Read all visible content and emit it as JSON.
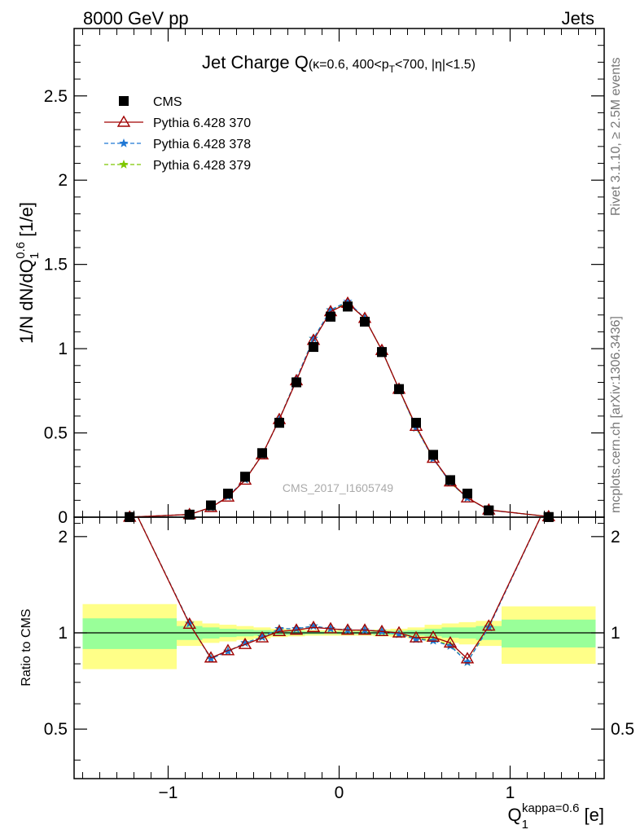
{
  "header": {
    "left": "8000 GeV pp",
    "right": "Jets"
  },
  "side_labels": {
    "rivet": "Rivet 3.1.10, ≥ 2.5M events",
    "mcplots": "mcplots.cern.ch [arXiv:1306.3436]"
  },
  "chart_data": [
    {
      "type": "line",
      "panel": "main",
      "title_main": "Jet Charge Q",
      "title_paren_open": "(κ=0.6, 400<p",
      "title_sub": "T",
      "title_paren_close": "<700, |η|<1.5)",
      "ylabel_a": "1/N dN/dQ",
      "ylabel_sub": "1",
      "ylabel_sup": "0.6",
      "ylabel_b": " [1/e]",
      "watermark": "CMS_2017_I1605749",
      "xlim": [
        -1.55,
        1.55
      ],
      "ylim": [
        0,
        2.9
      ],
      "yticks": [
        {
          "v": 0,
          "label": "0"
        },
        {
          "v": 0.5,
          "label": "0.5"
        },
        {
          "v": 1,
          "label": "1"
        },
        {
          "v": 1.5,
          "label": "1.5"
        },
        {
          "v": 2,
          "label": "2"
        },
        {
          "v": 2.5,
          "label": "2.5"
        }
      ],
      "x": [
        -1.225,
        -0.875,
        -0.75,
        -0.65,
        -0.55,
        -0.45,
        -0.35,
        -0.25,
        -0.15,
        -0.05,
        0.05,
        0.15,
        0.25,
        0.35,
        0.45,
        0.55,
        0.65,
        0.75,
        0.875,
        1.225
      ],
      "series": [
        {
          "name": "CMS",
          "color": "#000000",
          "marker": "square",
          "values": [
            0.0008,
            0.015,
            0.07,
            0.14,
            0.24,
            0.38,
            0.56,
            0.8,
            1.01,
            1.19,
            1.25,
            1.16,
            0.98,
            0.76,
            0.56,
            0.37,
            0.22,
            0.14,
            0.04,
            0.0008
          ]
        },
        {
          "name": "Pythia 6.428 370",
          "color": "#a00000",
          "marker": "triangle-open",
          "dash": "",
          "values": [
            0.0005,
            0.016,
            0.058,
            0.12,
            0.22,
            0.37,
            0.58,
            0.81,
            1.05,
            1.22,
            1.27,
            1.18,
            0.99,
            0.76,
            0.54,
            0.35,
            0.21,
            0.115,
            0.043,
            0.0035
          ]
        },
        {
          "name": "Pythia 6.428 378",
          "color": "#1f77d4",
          "marker": "star",
          "dash": "5,3",
          "values": [
            0.0005,
            0.016,
            0.058,
            0.123,
            0.224,
            0.368,
            0.58,
            0.82,
            1.06,
            1.23,
            1.28,
            1.18,
            0.99,
            0.76,
            0.53,
            0.347,
            0.205,
            0.114,
            0.042,
            0.0035
          ]
        },
        {
          "name": "Pythia 6.428 379",
          "color": "#7ec700",
          "marker": "star",
          "dash": "5,3",
          "values": [
            0.0005,
            0.016,
            0.058,
            0.123,
            0.224,
            0.37,
            0.58,
            0.82,
            1.06,
            1.23,
            1.27,
            1.18,
            0.99,
            0.76,
            0.53,
            0.35,
            0.205,
            0.114,
            0.043,
            0.0035
          ]
        }
      ]
    },
    {
      "type": "line",
      "panel": "ratio",
      "ylabel": "Ratio to CMS",
      "xlabel_main": "Q",
      "xlabel_sub": "1",
      "xlabel_sup": "kappa=0.6",
      "xlabel_unit": " [e]",
      "xlim": [
        -1.55,
        1.55
      ],
      "ylim": [
        0.35,
        2.3
      ],
      "xticks": [
        {
          "v": -1,
          "label": "−1"
        },
        {
          "v": 0,
          "label": "0"
        },
        {
          "v": 1,
          "label": "1"
        }
      ],
      "yticks": [
        {
          "v": 0.5,
          "label": "0.5"
        },
        {
          "v": 1,
          "label": "1"
        },
        {
          "v": 2,
          "label": "2"
        }
      ],
      "bands": {
        "edges": [
          -1.5,
          -0.95,
          -0.8,
          -0.7,
          -0.6,
          -0.5,
          -0.4,
          -0.3,
          -0.2,
          -0.1,
          0.0,
          0.1,
          0.2,
          0.3,
          0.4,
          0.5,
          0.6,
          0.7,
          0.8,
          0.95,
          1.5
        ],
        "inner_lo": [
          0.89,
          0.95,
          0.96,
          0.97,
          0.975,
          0.98,
          0.985,
          0.985,
          0.99,
          0.99,
          0.99,
          0.99,
          0.985,
          0.985,
          0.98,
          0.975,
          0.965,
          0.96,
          0.95,
          0.9
        ],
        "inner_hi": [
          1.11,
          1.05,
          1.04,
          1.03,
          1.025,
          1.02,
          1.015,
          1.015,
          1.01,
          1.01,
          1.01,
          1.01,
          1.015,
          1.015,
          1.02,
          1.03,
          1.04,
          1.04,
          1.05,
          1.1
        ],
        "outer_lo": [
          0.77,
          0.91,
          0.93,
          0.94,
          0.95,
          0.96,
          0.97,
          0.975,
          0.98,
          0.98,
          0.98,
          0.98,
          0.975,
          0.97,
          0.96,
          0.94,
          0.93,
          0.92,
          0.91,
          0.8
        ],
        "outer_hi": [
          1.23,
          1.09,
          1.07,
          1.06,
          1.05,
          1.04,
          1.03,
          1.025,
          1.02,
          1.02,
          1.02,
          1.02,
          1.025,
          1.03,
          1.04,
          1.06,
          1.07,
          1.08,
          1.09,
          1.21
        ],
        "inner_color": "#99ff99",
        "outer_color": "#ffff88"
      },
      "x": [
        -1.225,
        -0.875,
        -0.75,
        -0.65,
        -0.55,
        -0.45,
        -0.35,
        -0.25,
        -0.15,
        -0.05,
        0.05,
        0.15,
        0.25,
        0.35,
        0.45,
        0.55,
        0.65,
        0.75,
        0.875,
        1.225
      ],
      "series": [
        {
          "name": "Pythia 6.428 370",
          "color": "#a00000",
          "marker": "triangle-open",
          "dash": "",
          "values": [
            2.6,
            1.065,
            0.835,
            0.88,
            0.92,
            0.965,
            1.01,
            1.02,
            1.04,
            1.03,
            1.02,
            1.02,
            1.01,
            1.0,
            0.965,
            0.97,
            0.93,
            0.83,
            1.05,
            2.6
          ]
        },
        {
          "name": "Pythia 6.428 378",
          "color": "#1f77d4",
          "marker": "star",
          "dash": "5,3",
          "values": [
            2.6,
            1.07,
            0.83,
            0.875,
            0.93,
            0.97,
            1.03,
            1.03,
            1.05,
            1.03,
            1.02,
            1.02,
            1.01,
            0.99,
            0.955,
            0.945,
            0.91,
            0.81,
            1.04,
            2.6
          ]
        },
        {
          "name": "Pythia 6.428 379",
          "color": "#7ec700",
          "marker": "star",
          "dash": "5,3",
          "values": [
            2.6,
            1.07,
            0.83,
            0.875,
            0.93,
            0.97,
            1.03,
            1.03,
            1.05,
            1.03,
            1.02,
            1.02,
            1.01,
            0.99,
            0.96,
            0.95,
            0.915,
            0.81,
            1.045,
            2.6
          ]
        }
      ]
    }
  ]
}
